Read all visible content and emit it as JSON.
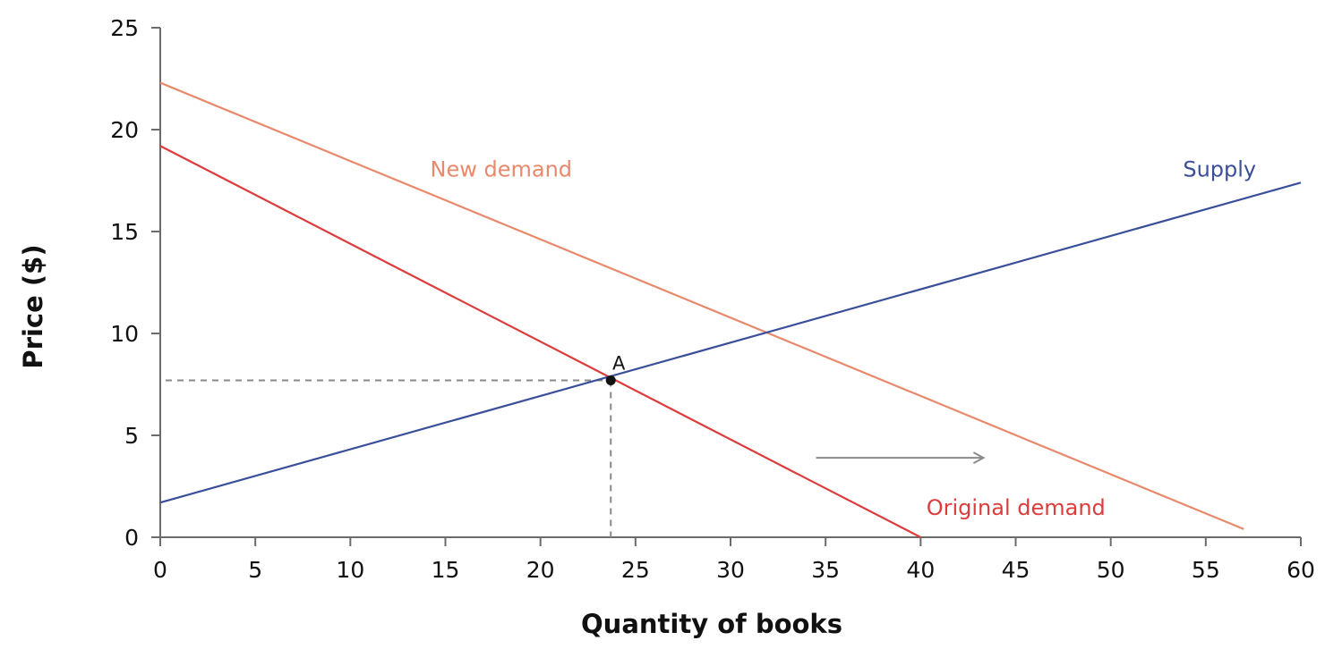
{
  "chart_data": {
    "type": "line",
    "xlabel": "Quantity of books",
    "ylabel": "Price ($)",
    "xlim": [
      0,
      60
    ],
    "ylim": [
      0,
      25
    ],
    "xticks": [
      0,
      5,
      10,
      15,
      20,
      25,
      30,
      35,
      40,
      45,
      50,
      55,
      60
    ],
    "yticks": [
      0,
      5,
      10,
      15,
      20,
      25
    ],
    "grid": false,
    "series": [
      {
        "name": "New demand",
        "color": "#e8896b",
        "label_at": [
          14.2,
          17.7
        ],
        "points": [
          [
            0,
            22.3
          ],
          [
            57,
            0.4
          ]
        ]
      },
      {
        "name": "Original demand",
        "color": "#dc3c3c",
        "label_at": [
          40.3,
          1.1
        ],
        "points": [
          [
            0,
            19.2
          ],
          [
            40,
            0
          ]
        ]
      },
      {
        "name": "Supply",
        "color": "#3a4e9a",
        "label_at": [
          53.8,
          17.7
        ],
        "points": [
          [
            0,
            1.7
          ],
          [
            60,
            17.4
          ]
        ]
      }
    ],
    "equilibrium": {
      "label": "A",
      "x": 23.7,
      "y": 7.7
    },
    "shift_arrow": {
      "from": [
        34.5,
        3.9
      ],
      "to": [
        43.3,
        3.9
      ],
      "color": "#8a8a8a"
    }
  }
}
